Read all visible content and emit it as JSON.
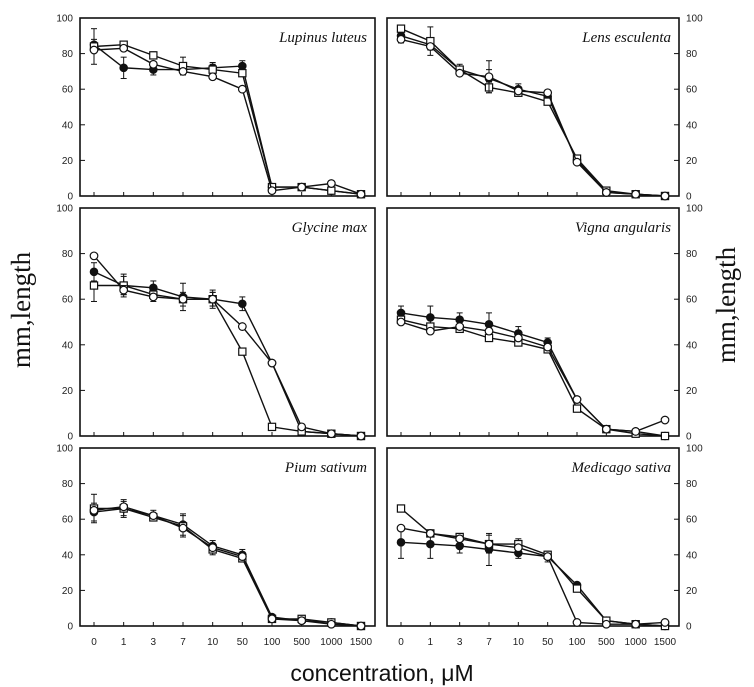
{
  "figure": {
    "ylabel_left": "mm,length",
    "ylabel_right": "mm,length",
    "xlabel": "concentration, μM"
  },
  "chart_data": [
    {
      "type": "line",
      "title": "Lupinus luteus",
      "categories": [
        "0",
        "1",
        "3",
        "7",
        "10",
        "50",
        "100",
        "500",
        "1000",
        "1500"
      ],
      "ylim": [
        0,
        100
      ],
      "yticks": [
        0,
        20,
        40,
        60,
        80,
        100
      ],
      "series": [
        {
          "marker": "filled-circle",
          "values": [
            85,
            72,
            71,
            71,
            72,
            73,
            5,
            5,
            3,
            1
          ],
          "err": [
            3,
            6,
            3,
            3,
            3,
            3,
            0,
            0,
            0,
            0
          ]
        },
        {
          "marker": "open-square",
          "values": [
            84,
            85,
            79,
            73,
            71,
            69,
            5,
            5,
            3,
            1
          ],
          "err": [
            10,
            0,
            2,
            5,
            3,
            0,
            0,
            0,
            0,
            0
          ]
        },
        {
          "marker": "open-circle",
          "values": [
            82,
            83,
            74,
            70,
            67,
            60,
            3,
            5,
            7,
            1
          ],
          "err": [
            0,
            0,
            0,
            0,
            0,
            0,
            0,
            0,
            0,
            0
          ]
        }
      ]
    },
    {
      "type": "line",
      "title": "Lens esculenta",
      "categories": [
        "0",
        "1",
        "3",
        "7",
        "10",
        "50",
        "100",
        "500",
        "1000",
        "1500"
      ],
      "ylim": [
        0,
        100
      ],
      "yticks": [
        0,
        20,
        40,
        60,
        80,
        100
      ],
      "series": [
        {
          "marker": "filled-circle",
          "values": [
            90,
            85,
            71,
            66,
            60,
            56,
            20,
            2,
            1,
            0
          ],
          "err": [
            4,
            3,
            3,
            5,
            3,
            2,
            2,
            0,
            0,
            0
          ]
        },
        {
          "marker": "open-square",
          "values": [
            94,
            87,
            71,
            61,
            58,
            53,
            21,
            3,
            1,
            0
          ],
          "err": [
            0,
            8,
            0,
            3,
            0,
            0,
            0,
            0,
            0,
            0
          ]
        },
        {
          "marker": "open-circle",
          "values": [
            88,
            84,
            69,
            67,
            59,
            58,
            19,
            2,
            1,
            0
          ],
          "err": [
            0,
            0,
            0,
            9,
            0,
            0,
            0,
            0,
            0,
            0
          ]
        }
      ]
    },
    {
      "type": "line",
      "title": "Glycine max",
      "categories": [
        "0",
        "1",
        "3",
        "7",
        "10",
        "50",
        "100",
        "500",
        "1000",
        "1500"
      ],
      "ylim": [
        0,
        100
      ],
      "yticks": [
        0,
        20,
        40,
        60,
        80,
        100
      ],
      "series": [
        {
          "marker": "filled-circle",
          "values": [
            72,
            66,
            65,
            61,
            60,
            58,
            32,
            2,
            1,
            0
          ],
          "err": [
            4,
            5,
            3,
            6,
            3,
            3,
            0,
            0,
            0,
            0
          ]
        },
        {
          "marker": "open-square",
          "values": [
            66,
            66,
            62,
            60,
            60,
            37,
            4,
            2,
            1,
            0
          ],
          "err": [
            7,
            4,
            3,
            3,
            3,
            0,
            0,
            0,
            0,
            0
          ]
        },
        {
          "marker": "open-circle",
          "values": [
            79,
            64,
            61,
            60,
            60,
            48,
            32,
            4,
            1,
            0
          ],
          "err": [
            0,
            2,
            0,
            0,
            4,
            0,
            0,
            0,
            0,
            0
          ]
        }
      ]
    },
    {
      "type": "line",
      "title": "Vigna angularis",
      "categories": [
        "0",
        "1",
        "3",
        "7",
        "10",
        "50",
        "100",
        "500",
        "1000",
        "1500"
      ],
      "ylim": [
        0,
        100
      ],
      "yticks": [
        0,
        20,
        40,
        60,
        80,
        100
      ],
      "series": [
        {
          "marker": "filled-circle",
          "values": [
            54,
            52,
            51,
            49,
            45,
            41,
            16,
            3,
            2,
            0
          ],
          "err": [
            3,
            5,
            3,
            5,
            3,
            2,
            0,
            0,
            0,
            0
          ]
        },
        {
          "marker": "open-square",
          "values": [
            51,
            48,
            47,
            43,
            41,
            38,
            12,
            3,
            1,
            0
          ],
          "err": [
            0,
            0,
            0,
            0,
            0,
            0,
            0,
            0,
            0,
            0
          ]
        },
        {
          "marker": "open-circle",
          "values": [
            50,
            46,
            48,
            46,
            43,
            39,
            16,
            3,
            2,
            7
          ],
          "err": [
            0,
            0,
            0,
            0,
            0,
            0,
            0,
            0,
            0,
            0
          ]
        }
      ]
    },
    {
      "type": "line",
      "title": "Pium sativum",
      "categories": [
        "0",
        "1",
        "3",
        "7",
        "10",
        "50",
        "100",
        "500",
        "1000",
        "1500"
      ],
      "ylim": [
        0,
        100
      ],
      "yticks": [
        0,
        20,
        40,
        60,
        80,
        100
      ],
      "series": [
        {
          "marker": "filled-circle",
          "values": [
            64,
            66,
            62,
            57,
            45,
            40,
            5,
            3,
            2,
            0
          ],
          "err": [
            5,
            5,
            3,
            6,
            3,
            3,
            0,
            0,
            0,
            0
          ]
        },
        {
          "marker": "open-square",
          "values": [
            66,
            66,
            61,
            56,
            43,
            38,
            4,
            4,
            2,
            0
          ],
          "err": [
            8,
            4,
            0,
            6,
            3,
            0,
            0,
            0,
            0,
            0
          ]
        },
        {
          "marker": "open-circle",
          "values": [
            65,
            67,
            62,
            55,
            44,
            39,
            4,
            3,
            1,
            0
          ],
          "err": [
            0,
            0,
            0,
            0,
            0,
            0,
            0,
            0,
            0,
            0
          ]
        }
      ]
    },
    {
      "type": "line",
      "title": "Medicago sativa",
      "categories": [
        "0",
        "1",
        "3",
        "7",
        "10",
        "50",
        "100",
        "500",
        "1000",
        "1500"
      ],
      "ylim": [
        0,
        100
      ],
      "yticks": [
        0,
        20,
        40,
        60,
        80,
        100
      ],
      "series": [
        {
          "marker": "filled-circle",
          "values": [
            47,
            46,
            45,
            43,
            41,
            39,
            23,
            3,
            1,
            0
          ],
          "err": [
            9,
            8,
            4,
            9,
            3,
            3,
            0,
            0,
            0,
            0
          ]
        },
        {
          "marker": "open-square",
          "values": [
            66,
            52,
            50,
            46,
            46,
            40,
            21,
            3,
            1,
            0
          ],
          "err": [
            0,
            0,
            0,
            5,
            3,
            0,
            0,
            0,
            0,
            0
          ]
        },
        {
          "marker": "open-circle",
          "values": [
            55,
            52,
            49,
            46,
            44,
            39,
            2,
            1,
            1,
            2
          ],
          "err": [
            0,
            0,
            0,
            0,
            0,
            0,
            0,
            0,
            0,
            0
          ]
        }
      ]
    }
  ]
}
